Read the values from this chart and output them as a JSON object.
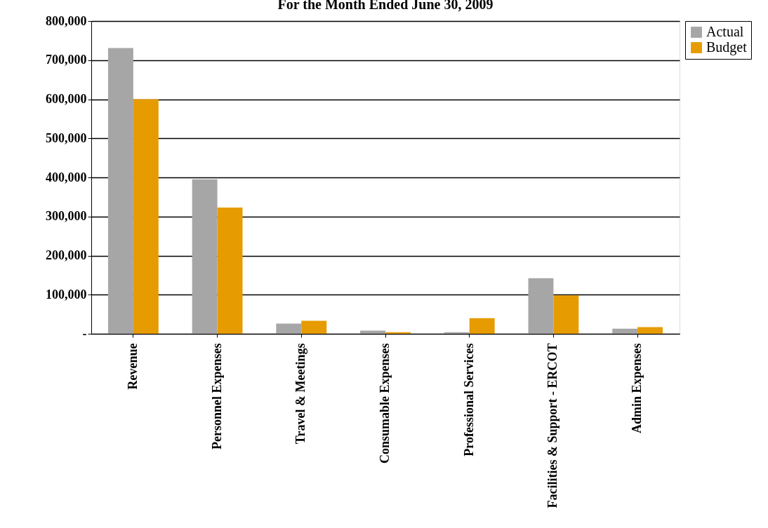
{
  "chart_data": {
    "type": "bar",
    "title": "For the Month Ended June 30, 2009",
    "categories": [
      "Revenue",
      "Personnel Expenses",
      "Travel & Meetings",
      "Consumable Expenses",
      "Professional Services",
      "Facilities & Support - ERCOT",
      "Admin Expenses"
    ],
    "series": [
      {
        "name": "Actual",
        "color": "#a6a6a6",
        "values": [
          731000,
          395000,
          26000,
          8000,
          4000,
          142000,
          13000
        ]
      },
      {
        "name": "Budget",
        "color": "#e69b00",
        "values": [
          600000,
          323000,
          33000,
          4000,
          40000,
          98000,
          17000
        ]
      }
    ],
    "ylim": [
      0,
      800000
    ],
    "yticks": [
      {
        "value": 0,
        "label": "-"
      },
      {
        "value": 100000,
        "label": "100,000"
      },
      {
        "value": 200000,
        "label": "200,000"
      },
      {
        "value": 300000,
        "label": "300,000"
      },
      {
        "value": 400000,
        "label": "400,000"
      },
      {
        "value": 500000,
        "label": "500,000"
      },
      {
        "value": 600000,
        "label": "600,000"
      },
      {
        "value": 700000,
        "label": "700,000"
      },
      {
        "value": 800000,
        "label": "800,000"
      }
    ],
    "grid": "y",
    "legend": "right"
  }
}
